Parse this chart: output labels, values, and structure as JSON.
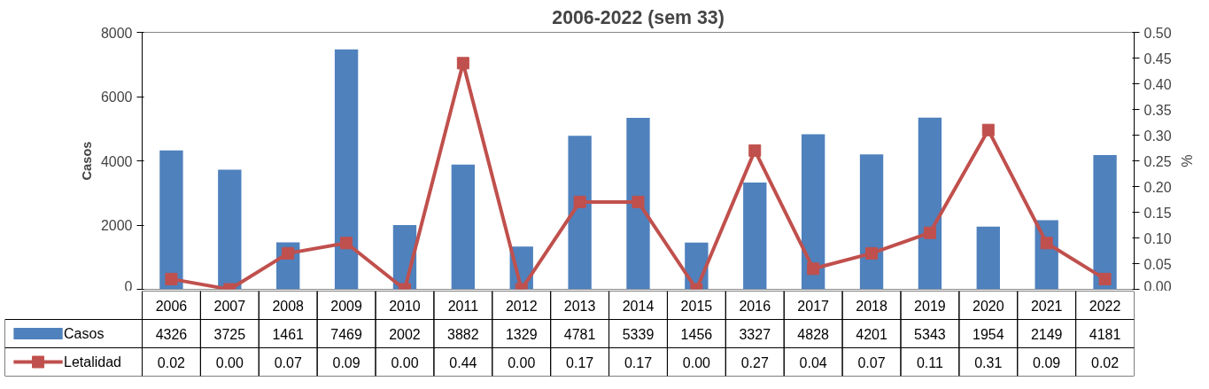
{
  "chart_data": {
    "type": "bar",
    "title": "2006-2022 (sem 33)",
    "ylabel": "Casos",
    "y2label": "%",
    "categories": [
      "2006",
      "2007",
      "2008",
      "2009",
      "2010",
      "2011",
      "2012",
      "2013",
      "2014",
      "2015",
      "2016",
      "2017",
      "2018",
      "2019",
      "2020",
      "2021",
      "2022"
    ],
    "series": [
      {
        "name": "Casos",
        "color": "#4f81bd",
        "values": [
          4326,
          3725,
          1461,
          7469,
          2002,
          3882,
          1329,
          4781,
          5339,
          1456,
          3327,
          4828,
          4201,
          5343,
          1954,
          2149,
          4181
        ]
      },
      {
        "name": "Letalidad",
        "type": "line",
        "axis": "y2",
        "color": "#c0504d",
        "marker": "square",
        "values": [
          0.02,
          0.0,
          0.07,
          0.09,
          0.0,
          0.44,
          0.0,
          0.17,
          0.17,
          0.0,
          0.27,
          0.04,
          0.07,
          0.11,
          0.31,
          0.09,
          0.02
        ],
        "value_labels": [
          "0.02",
          "0.00",
          "0.07",
          "0.09",
          "0.00",
          "0.44",
          "0.00",
          "0.17",
          "0.17",
          "0.00",
          "0.27",
          "0.04",
          "0.07",
          "0.11",
          "0.31",
          "0.09",
          "0.02"
        ]
      }
    ],
    "ylim": [
      0,
      8000
    ],
    "yticks": [
      0,
      2000,
      4000,
      6000,
      8000
    ],
    "y2lim": [
      0,
      0.5
    ],
    "y2ticks": [
      {
        "value": 0,
        "label": "0.00"
      },
      {
        "value": 0.05,
        "label": "0.05"
      },
      {
        "value": 0.1,
        "label": "0.10"
      },
      {
        "value": 0.15,
        "label": "0.15"
      },
      {
        "value": 0.2,
        "label": "0.20"
      },
      {
        "value": 0.25,
        "label": "0.25"
      },
      {
        "value": 0.3,
        "label": "0.30"
      },
      {
        "value": 0.35,
        "label": "0.35"
      },
      {
        "value": 0.4,
        "label": "0.40"
      },
      {
        "value": 0.45,
        "label": "0.45"
      },
      {
        "value": 0.5,
        "label": "0.50"
      }
    ],
    "data_labels": true,
    "legend": "bottom",
    "grid": false
  }
}
